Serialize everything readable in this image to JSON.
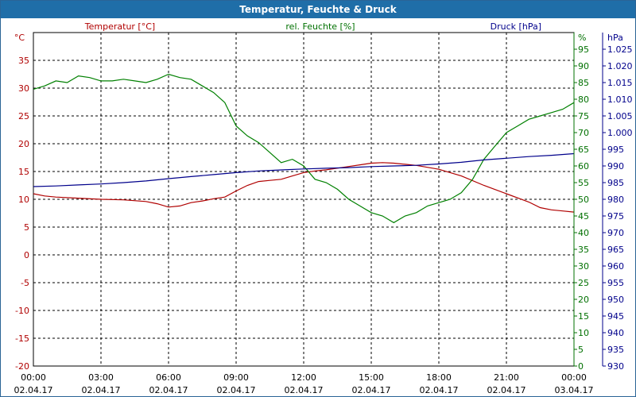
{
  "window": {
    "title": "Temperatur, Feuchte & Druck"
  },
  "chart_data": {
    "type": "line",
    "title": "Temperatur, Feuchte & Druck",
    "x": {
      "range": [
        0,
        24
      ],
      "ticks": [
        {
          "value": 0,
          "time": "00:00",
          "date": "02.04.17"
        },
        {
          "value": 3,
          "time": "03:00",
          "date": "02.04.17"
        },
        {
          "value": 6,
          "time": "06:00",
          "date": "02.04.17"
        },
        {
          "value": 9,
          "time": "09:00",
          "date": "02.04.17"
        },
        {
          "value": 12,
          "time": "12:00",
          "date": "02.04.17"
        },
        {
          "value": 15,
          "time": "15:00",
          "date": "02.04.17"
        },
        {
          "value": 18,
          "time": "18:00",
          "date": "02.04.17"
        },
        {
          "value": 21,
          "time": "21:00",
          "date": "02.04.17"
        },
        {
          "value": 24,
          "time": "00:00",
          "date": "03.04.17"
        }
      ]
    },
    "axes": {
      "temperature": {
        "label": "Temperatur [°C]",
        "unit": "°C",
        "range": [
          -20,
          40
        ],
        "step": 5,
        "color": "#b00000",
        "ticks": [
          "-20",
          "-15",
          "-10",
          "-5",
          "0",
          "5",
          "10",
          "15",
          "20",
          "25",
          "30",
          "35"
        ]
      },
      "humidity": {
        "label": "rel. Feuchte [%]",
        "unit": "%",
        "range": [
          0,
          100
        ],
        "step": 5,
        "color": "#007000",
        "ticks": [
          "0",
          "5",
          "10",
          "15",
          "20",
          "25",
          "30",
          "35",
          "40",
          "45",
          "50",
          "55",
          "60",
          "65",
          "70",
          "75",
          "80",
          "85",
          "90",
          "95"
        ]
      },
      "pressure": {
        "label": "Druck [hPa]",
        "unit": "hPa",
        "range": [
          930,
          1030
        ],
        "step": 5,
        "color": "#00008b",
        "ticks": [
          "930",
          "935",
          "940",
          "945",
          "950",
          "955",
          "960",
          "965",
          "970",
          "975",
          "980",
          "985",
          "990",
          "995",
          "1.000",
          "1.005",
          "1.010",
          "1.015",
          "1.020",
          "1.025"
        ]
      }
    },
    "series": [
      {
        "name": "Temperatur",
        "axis": "temperature",
        "color": "#b00000",
        "points": [
          [
            0,
            11
          ],
          [
            0.5,
            10.6
          ],
          [
            1,
            10.4
          ],
          [
            2,
            10.2
          ],
          [
            3,
            10
          ],
          [
            4,
            9.9
          ],
          [
            5,
            9.6
          ],
          [
            5.5,
            9.2
          ],
          [
            6,
            8.6
          ],
          [
            6.5,
            8.8
          ],
          [
            7,
            9.4
          ],
          [
            7.5,
            9.7
          ],
          [
            8,
            10.1
          ],
          [
            8.5,
            10.4
          ],
          [
            9,
            11.5
          ],
          [
            9.5,
            12.5
          ],
          [
            10,
            13.2
          ],
          [
            10.5,
            13.4
          ],
          [
            11,
            13.6
          ],
          [
            11.5,
            14.2
          ],
          [
            12,
            14.8
          ],
          [
            12.5,
            15.1
          ],
          [
            13,
            15.3
          ],
          [
            13.5,
            15.6
          ],
          [
            14,
            15.9
          ],
          [
            14.5,
            16.2
          ],
          [
            15,
            16.5
          ],
          [
            15.5,
            16.6
          ],
          [
            16,
            16.5
          ],
          [
            16.5,
            16.3
          ],
          [
            17,
            16.1
          ],
          [
            18,
            15.4
          ],
          [
            19,
            14.2
          ],
          [
            20,
            12.5
          ],
          [
            21,
            11
          ],
          [
            22,
            9.5
          ],
          [
            22.5,
            8.5
          ],
          [
            23,
            8.1
          ],
          [
            23.5,
            7.9
          ],
          [
            24,
            7.7
          ]
        ]
      },
      {
        "name": "rel. Feuchte",
        "axis": "humidity",
        "color": "#008000",
        "points": [
          [
            0,
            83
          ],
          [
            0.5,
            84
          ],
          [
            1,
            85.5
          ],
          [
            1.5,
            85
          ],
          [
            2,
            87
          ],
          [
            2.5,
            86.5
          ],
          [
            3,
            85.5
          ],
          [
            3.5,
            85.5
          ],
          [
            4,
            86
          ],
          [
            4.5,
            85.5
          ],
          [
            5,
            85
          ],
          [
            5.5,
            86
          ],
          [
            6,
            87.5
          ],
          [
            6.5,
            86.5
          ],
          [
            7,
            86
          ],
          [
            7.5,
            84
          ],
          [
            8,
            82
          ],
          [
            8.5,
            79
          ],
          [
            9,
            72
          ],
          [
            9.5,
            69
          ],
          [
            10,
            67
          ],
          [
            10.5,
            64
          ],
          [
            11,
            61
          ],
          [
            11.5,
            62
          ],
          [
            12,
            60
          ],
          [
            12.5,
            56
          ],
          [
            13,
            55
          ],
          [
            13.5,
            53
          ],
          [
            14,
            50
          ],
          [
            14.5,
            48
          ],
          [
            15,
            46
          ],
          [
            15.5,
            45
          ],
          [
            16,
            43
          ],
          [
            16.5,
            45
          ],
          [
            17,
            46
          ],
          [
            17.5,
            48
          ],
          [
            18,
            49
          ],
          [
            18.5,
            50
          ],
          [
            19,
            52
          ],
          [
            19.5,
            56
          ],
          [
            20,
            62
          ],
          [
            20.5,
            66
          ],
          [
            21,
            70
          ],
          [
            21.5,
            72
          ],
          [
            22,
            74
          ],
          [
            22.5,
            75
          ],
          [
            23,
            76
          ],
          [
            23.5,
            77
          ],
          [
            24,
            79
          ]
        ]
      },
      {
        "name": "Druck",
        "axis": "pressure",
        "color": "#00008b",
        "points": [
          [
            0,
            983.8
          ],
          [
            1,
            984
          ],
          [
            2,
            984.3
          ],
          [
            3,
            984.6
          ],
          [
            4,
            985
          ],
          [
            5,
            985.5
          ],
          [
            6,
            986.2
          ],
          [
            7,
            986.8
          ],
          [
            8,
            987.4
          ],
          [
            9,
            988
          ],
          [
            10,
            988.5
          ],
          [
            11,
            988.8
          ],
          [
            12,
            989.1
          ],
          [
            13,
            989.3
          ],
          [
            14,
            989.5
          ],
          [
            15,
            989.8
          ],
          [
            16,
            990
          ],
          [
            17,
            990.2
          ],
          [
            18,
            990.6
          ],
          [
            19,
            991.1
          ],
          [
            20,
            991.8
          ],
          [
            21,
            992.3
          ],
          [
            22,
            992.8
          ],
          [
            23,
            993.2
          ],
          [
            24,
            993.7
          ]
        ]
      }
    ]
  }
}
